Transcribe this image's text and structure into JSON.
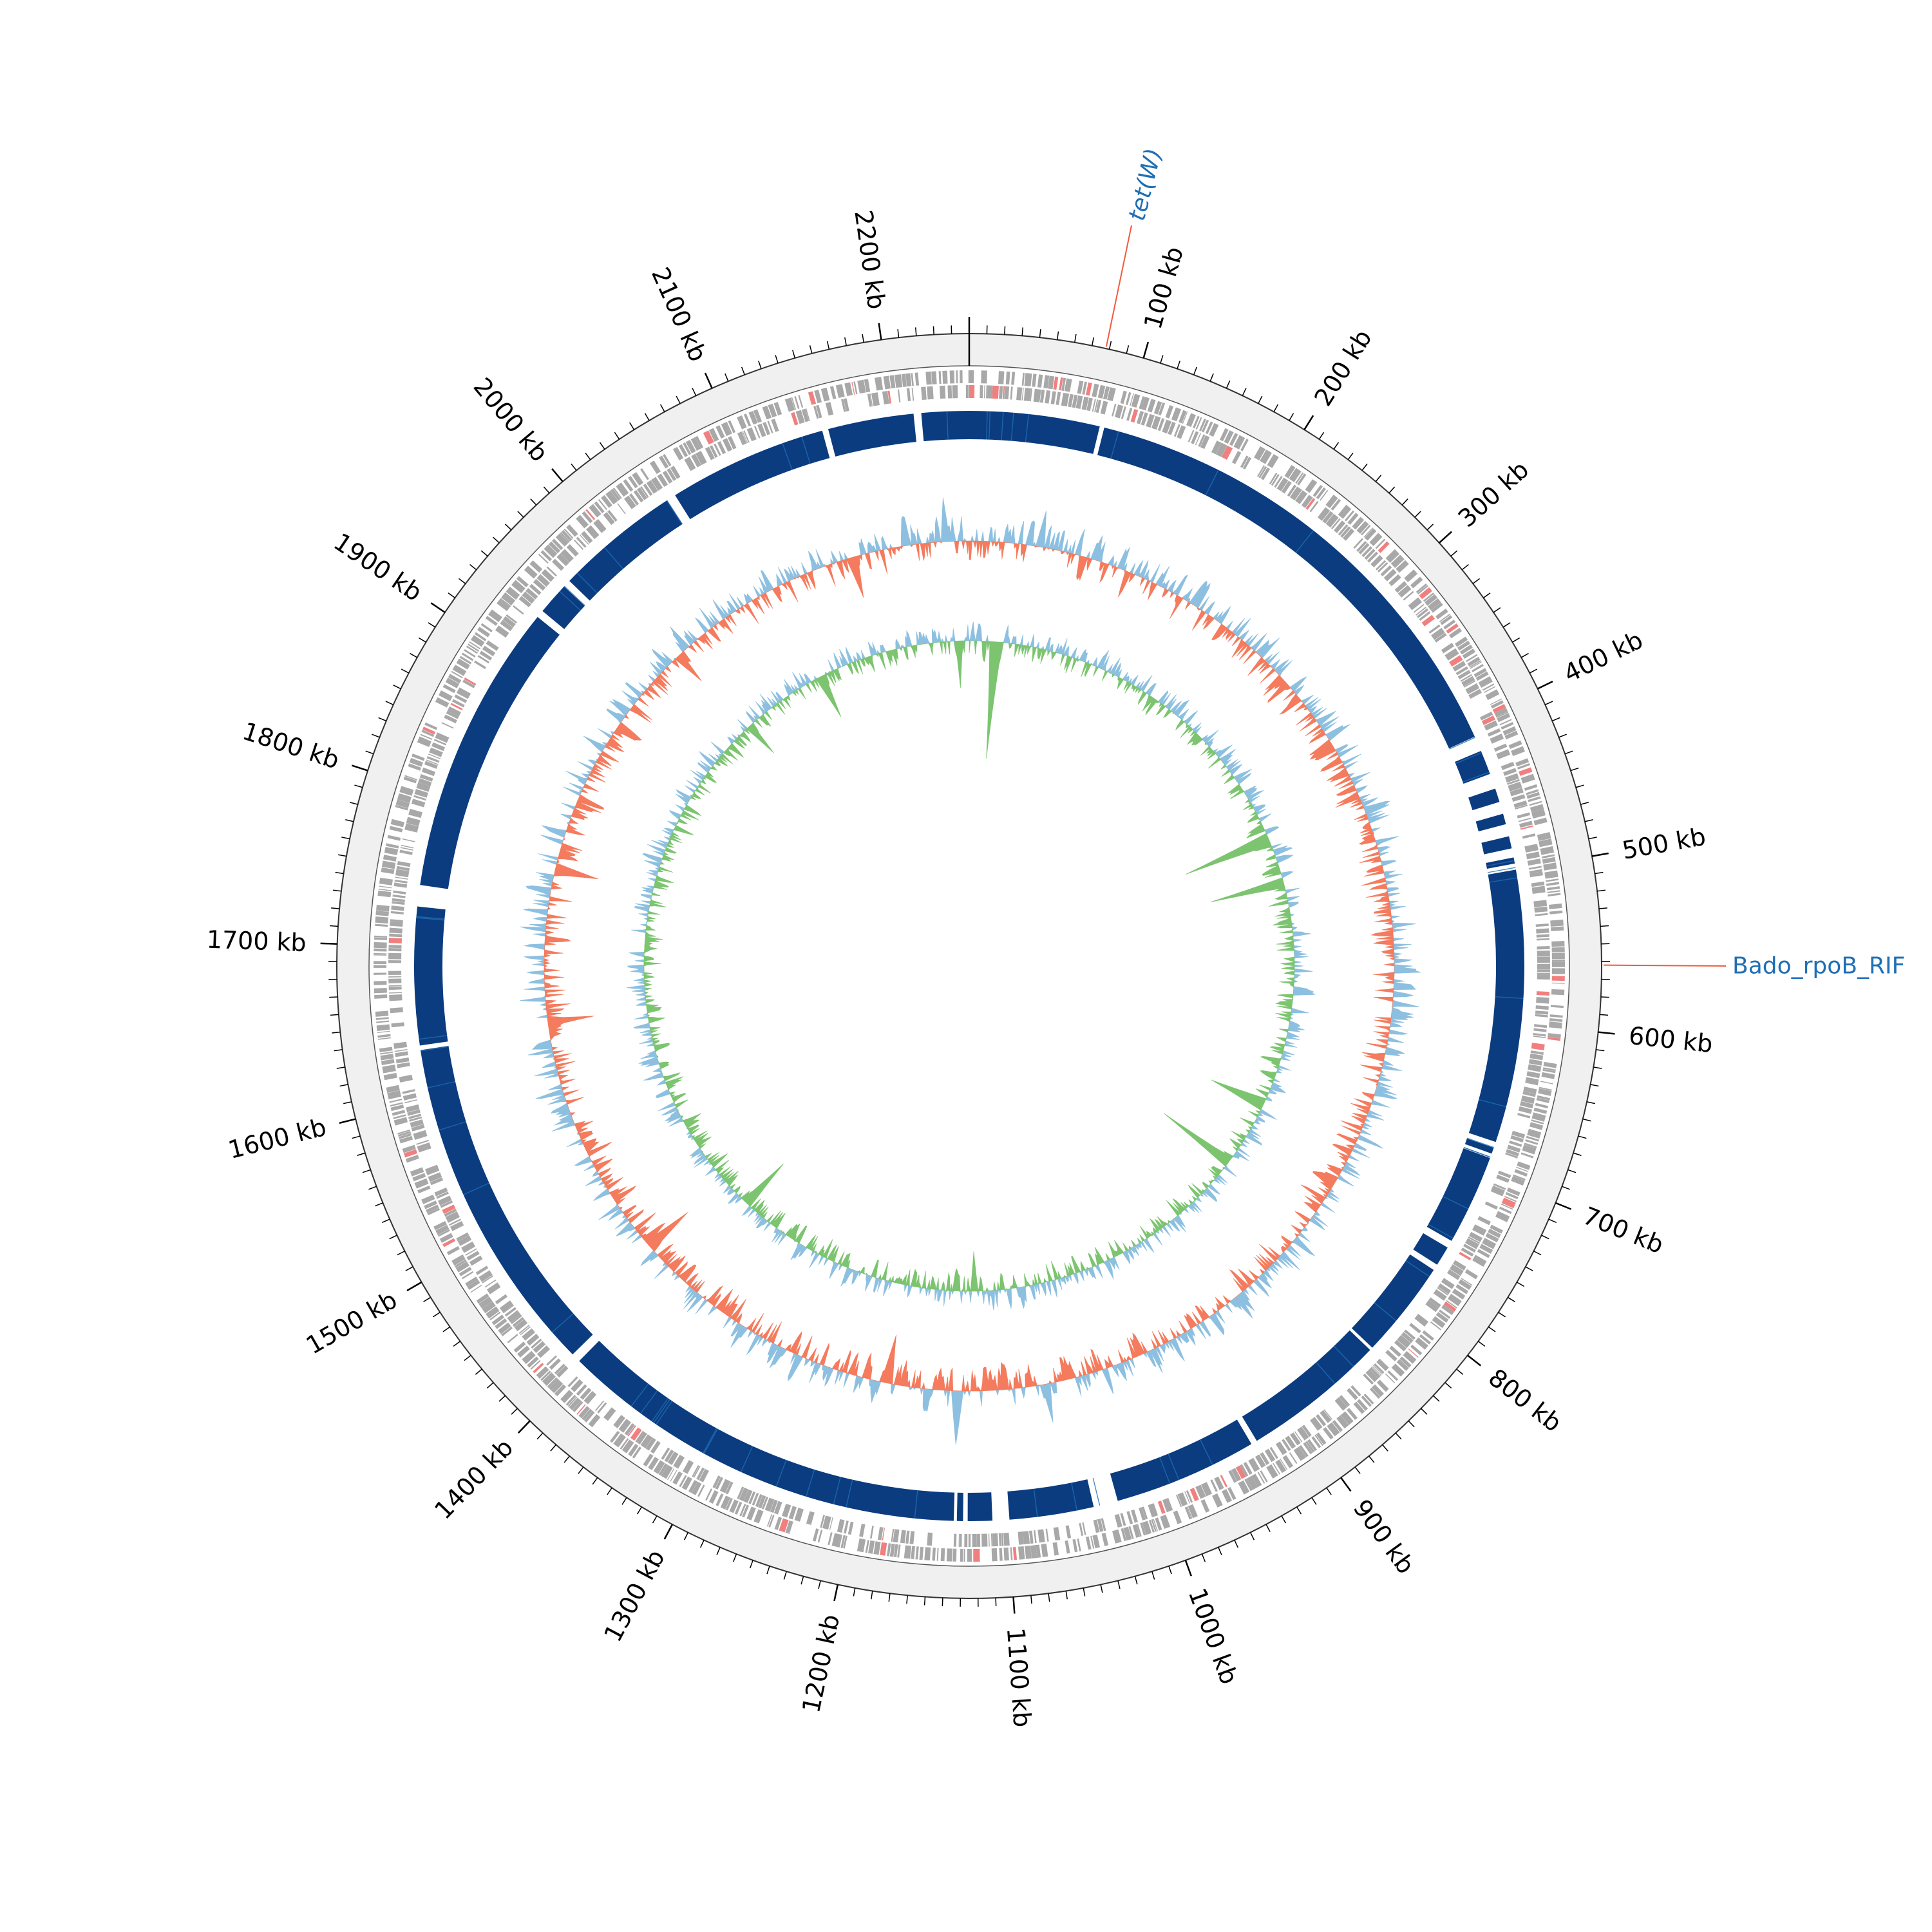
{
  "figure": {
    "type": "circular-genome-map",
    "genome_length_kb": 2250,
    "colors": {
      "background": "#ffffff",
      "ideogram_ring": "#f0f0f0",
      "gene_features": "#a8a8a8",
      "highlighted_features": "#f08080",
      "blast_hits": "#0b3c80",
      "blast_hits_light": "#1f6fb5",
      "gc_content_positive": "#8dc0e0",
      "gc_content_negative": "#f47b5d",
      "gc_skew_positive": "#8dc0e0",
      "gc_skew_negative": "#7cc46f",
      "annotation_line": "#f05a3c",
      "annotation_text": "#1f6fb5"
    }
  },
  "ticks": {
    "major_step_kb": 100,
    "minor_step_kb": 10,
    "labels": [
      {
        "kb": 100,
        "text": "100 kb"
      },
      {
        "kb": 200,
        "text": "200 kb"
      },
      {
        "kb": 300,
        "text": "300 kb"
      },
      {
        "kb": 400,
        "text": "400 kb"
      },
      {
        "kb": 500,
        "text": "500 kb"
      },
      {
        "kb": 600,
        "text": "600 kb"
      },
      {
        "kb": 700,
        "text": "700 kb"
      },
      {
        "kb": 800,
        "text": "800 kb"
      },
      {
        "kb": 900,
        "text": "900 kb"
      },
      {
        "kb": 1000,
        "text": "1000 kb"
      },
      {
        "kb": 1100,
        "text": "1100 kb"
      },
      {
        "kb": 1200,
        "text": "1200 kb"
      },
      {
        "kb": 1300,
        "text": "1300 kb"
      },
      {
        "kb": 1400,
        "text": "1400 kb"
      },
      {
        "kb": 1500,
        "text": "1500 kb"
      },
      {
        "kb": 1600,
        "text": "1600 kb"
      },
      {
        "kb": 1700,
        "text": "1700 kb"
      },
      {
        "kb": 1800,
        "text": "1800 kb"
      },
      {
        "kb": 1900,
        "text": "1900 kb"
      },
      {
        "kb": 2000,
        "text": "2000 kb"
      },
      {
        "kb": 2100,
        "text": "2100 kb"
      },
      {
        "kb": 2200,
        "text": "2200 kb"
      }
    ]
  },
  "annotations": [
    {
      "kb": 78,
      "text": "tet(W)",
      "italic": true
    },
    {
      "kb": 562,
      "text": "Bado_rpoB_RIF",
      "italic": false
    }
  ],
  "blast_hit_gaps_kb": [
    [
      85,
      88
    ],
    [
      410,
      420
    ],
    [
      436,
      446
    ],
    [
      455,
      463
    ],
    [
      470,
      478
    ],
    [
      486,
      492
    ],
    [
      496,
      500
    ],
    [
      678,
      682
    ],
    [
      686,
      689
    ],
    [
      748,
      753
    ],
    [
      766,
      770
    ],
    [
      834,
      836
    ],
    [
      930,
      934
    ],
    [
      1028,
      1044
    ],
    [
      1099,
      1110
    ],
    [
      1126,
      1129
    ],
    [
      1133,
      1135
    ],
    [
      1404,
      1410
    ],
    [
      1633,
      1636
    ],
    [
      1726,
      1740
    ],
    [
      1931,
      1936
    ],
    [
      1957,
      1962
    ],
    [
      2044,
      2050
    ],
    [
      2154,
      2158
    ],
    [
      2214,
      2219
    ]
  ],
  "tracks": [
    {
      "name": "gene features"
    },
    {
      "name": "BLAST hits"
    },
    {
      "name": "GC content"
    },
    {
      "name": "GC skew"
    }
  ]
}
